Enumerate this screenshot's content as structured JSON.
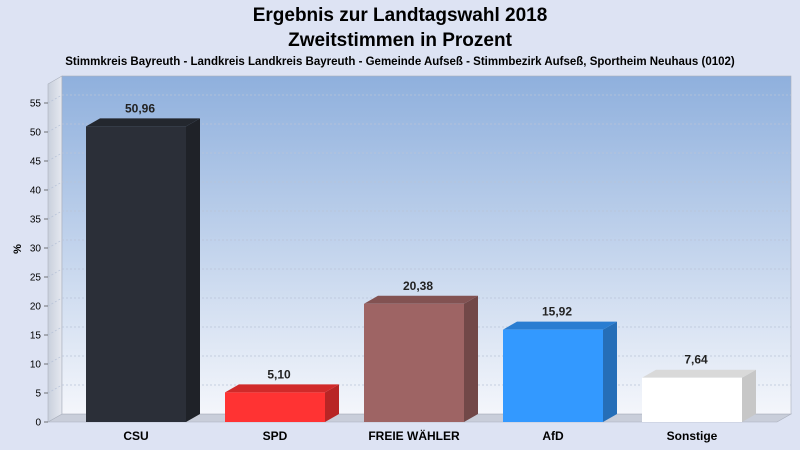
{
  "chart_data": {
    "type": "bar",
    "title": "Ergebnis zur Landtagswahl 2018",
    "title2": "Zweitstimmen in Prozent",
    "subtitle": "Stimmkreis Bayreuth - Landkreis Landkreis Bayreuth - Gemeinde Aufseß - Stimmbezirk Aufseß, Sportheim Neuhaus (0102)",
    "ylabel": "%",
    "xlabel": "",
    "ylim": [
      0,
      57
    ],
    "yticks": [
      0,
      5,
      10,
      15,
      20,
      25,
      30,
      35,
      40,
      45,
      50,
      55
    ],
    "categories": [
      "CSU",
      "SPD",
      "FREIE WÄHLER",
      "AfD",
      "Sonstige"
    ],
    "values": [
      50.96,
      5.1,
      20.38,
      15.92,
      7.64
    ],
    "value_labels": [
      "50,96",
      "5,10",
      "20,38",
      "15,92",
      "7,64"
    ],
    "colors": [
      "#2b2f38",
      "#ff3333",
      "#9e6464",
      "#3399ff",
      "#ffffff"
    ],
    "grid": true,
    "legend": "none"
  }
}
